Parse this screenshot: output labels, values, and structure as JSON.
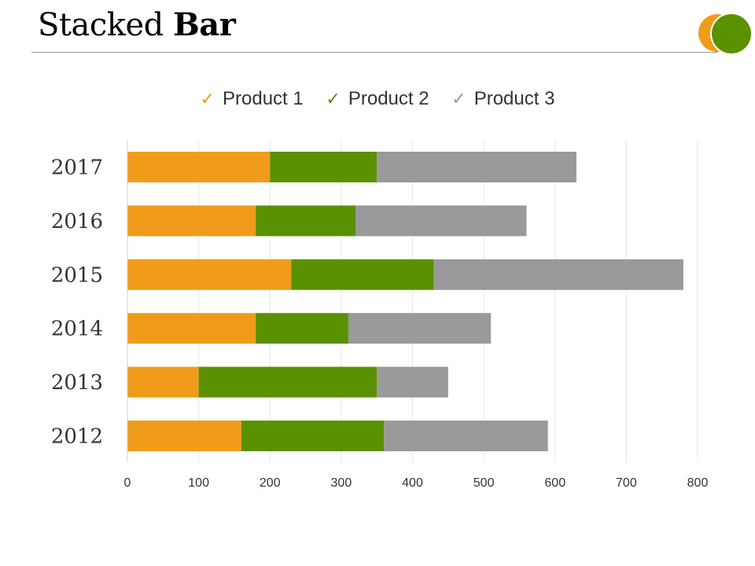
{
  "header": {
    "title_regular": "Stacked",
    "title_bold": "Bar"
  },
  "logo": {
    "colors": [
      "#F09C1A",
      "#5A9100"
    ]
  },
  "legend": {
    "placement": "top-center",
    "icon": "check-icon",
    "items": [
      {
        "label": "Product 1",
        "color": "#F09C1A"
      },
      {
        "label": "Product 2",
        "color": "#5A9100"
      },
      {
        "label": "Product 3",
        "color": "#999999"
      }
    ]
  },
  "chart_data": {
    "type": "bar",
    "orientation": "horizontal",
    "stacked": true,
    "title": "Stacked Bar",
    "categories": [
      "2012",
      "2013",
      "2014",
      "2015",
      "2016",
      "2017"
    ],
    "series": [
      {
        "name": "Product 1",
        "color": "#F09C1A",
        "values": [
          160,
          100,
          180,
          230,
          180,
          200
        ]
      },
      {
        "name": "Product 2",
        "color": "#5A9100",
        "values": [
          200,
          250,
          130,
          200,
          140,
          150
        ]
      },
      {
        "name": "Product 3",
        "color": "#999999",
        "values": [
          230,
          100,
          200,
          350,
          240,
          280
        ]
      }
    ],
    "xlim": [
      0,
      800
    ],
    "xticks": [
      "0",
      "100",
      "200",
      "300",
      "400",
      "500",
      "600",
      "700",
      "800"
    ],
    "grid": true,
    "legend": "top-center"
  }
}
